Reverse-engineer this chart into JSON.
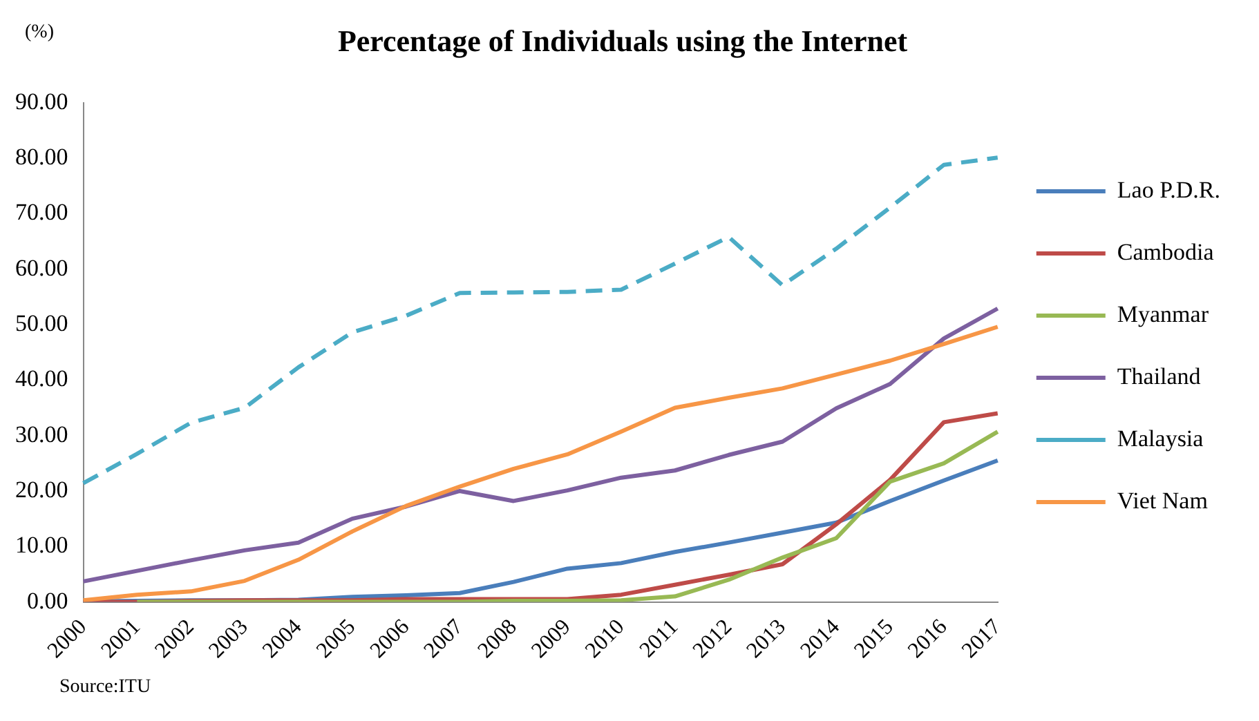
{
  "chart_data": {
    "type": "line",
    "title": "Percentage of Individuals using the Internet",
    "ylabel": "(%)",
    "categories": [
      "2000",
      "2001",
      "2002",
      "2003",
      "2004",
      "2005",
      "2006",
      "2007",
      "2008",
      "2009",
      "2010",
      "2011",
      "2012",
      "2013",
      "2014",
      "2015",
      "2016",
      "2017"
    ],
    "series": [
      {
        "name": "Lao P.D.R.",
        "color": "#4a7ebb",
        "values": [
          0.1,
          0.2,
          0.3,
          0.3,
          0.4,
          0.9,
          1.2,
          1.6,
          3.6,
          6,
          7,
          9,
          10.7,
          12.5,
          14.3,
          18.2,
          21.9,
          25.5
        ]
      },
      {
        "name": "Cambodia",
        "color": "#be4b48",
        "values": [
          0,
          0,
          0.2,
          0.3,
          0.3,
          0.3,
          0.5,
          0.5,
          0.5,
          0.5,
          1.3,
          3.1,
          4.9,
          6.8,
          14,
          22,
          32.4,
          34
        ]
      },
      {
        "name": "Myanmar",
        "color": "#98b954",
        "values": [
          null,
          0,
          0,
          0,
          0,
          0,
          0,
          0,
          0.2,
          0.2,
          0.3,
          1,
          4,
          8,
          11.5,
          21.7,
          25,
          30.7
        ]
      },
      {
        "name": "Thailand",
        "color": "#7d60a0",
        "values": [
          3.7,
          5.6,
          7.5,
          9.3,
          10.7,
          15,
          17.2,
          20,
          18.2,
          20.1,
          22.4,
          23.7,
          26.5,
          28.9,
          34.9,
          39.3,
          47.5,
          52.9
        ]
      },
      {
        "name": "Malaysia",
        "color": "#4bacc6",
        "line_style": "dashed",
        "values": [
          21.4,
          26.7,
          32.3,
          35,
          42.3,
          48.6,
          51.6,
          55.7,
          55.8,
          55.9,
          56.3,
          61,
          65.8,
          57.1,
          63.7,
          71.1,
          78.8,
          80.1
        ]
      },
      {
        "name": "Viet Nam",
        "color": "#f79646",
        "values": [
          0.3,
          1.3,
          1.9,
          3.8,
          7.6,
          12.7,
          17.3,
          20.8,
          24,
          26.6,
          30.7,
          35,
          36.8,
          38.5,
          41,
          43.5,
          46.5,
          49.6
        ]
      }
    ],
    "ylim": [
      0,
      90
    ],
    "yticks": [
      {
        "value": 0,
        "label": "0.00"
      },
      {
        "value": 10,
        "label": "10.00"
      },
      {
        "value": 20,
        "label": "20.00"
      },
      {
        "value": 30,
        "label": "30.00"
      },
      {
        "value": 40,
        "label": "40.00"
      },
      {
        "value": 50,
        "label": "50.00"
      },
      {
        "value": 60,
        "label": "60.00"
      },
      {
        "value": 70,
        "label": "70.00"
      },
      {
        "value": 80,
        "label": "80.00"
      },
      {
        "value": 90,
        "label": "90.00"
      }
    ],
    "grid": false,
    "legend": "right",
    "marker": "none",
    "line_style": "solid",
    "annotations": [
      "Source:ITU"
    ]
  }
}
